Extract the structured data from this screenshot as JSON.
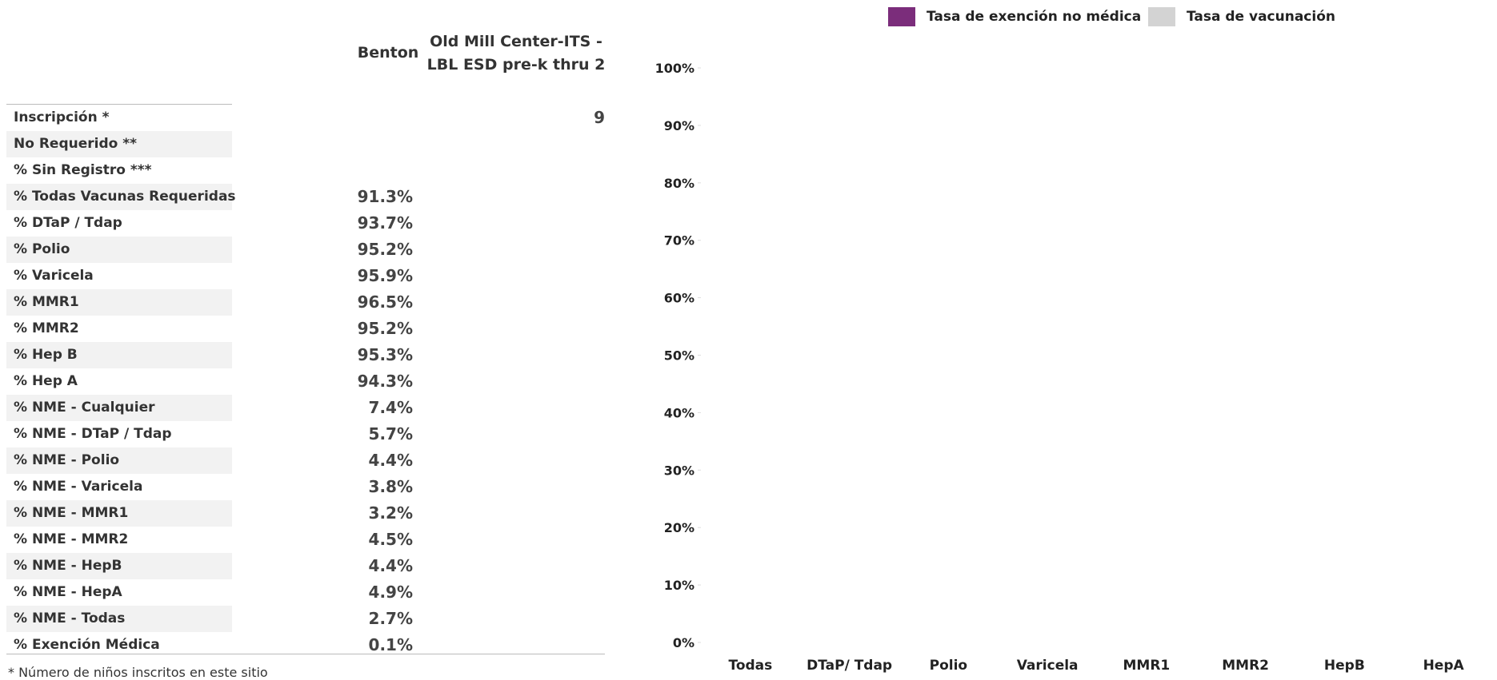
{
  "table": {
    "headers": {
      "county": "Benton",
      "school": "Old Mill Center-ITS - LBL ESD  pre-k thru 2",
      "school_line1": "Old Mill Center-ITS -",
      "school_line2": "LBL ESD  pre-k thru 2"
    },
    "rows": [
      {
        "label": "Inscripción *",
        "county": "",
        "school": "9"
      },
      {
        "label": "No Requerido **",
        "county": "",
        "school": ""
      },
      {
        "label": "% Sin Registro ***",
        "county": "",
        "school": ""
      },
      {
        "label": "% Todas Vacunas Requeridas",
        "county": "91.3%",
        "school": ""
      },
      {
        "label": "% DTaP / Tdap",
        "county": "93.7%",
        "school": ""
      },
      {
        "label": "% Polio",
        "county": "95.2%",
        "school": ""
      },
      {
        "label": "% Varicela",
        "county": "95.9%",
        "school": ""
      },
      {
        "label": "% MMR1",
        "county": "96.5%",
        "school": ""
      },
      {
        "label": "% MMR2",
        "county": "95.2%",
        "school": ""
      },
      {
        "label": "% Hep B",
        "county": "95.3%",
        "school": ""
      },
      {
        "label": "% Hep A",
        "county": "94.3%",
        "school": ""
      },
      {
        "label": "% NME - Cualquier",
        "county": "7.4%",
        "school": ""
      },
      {
        "label": "% NME - DTaP / Tdap",
        "county": "5.7%",
        "school": ""
      },
      {
        "label": "% NME - Polio",
        "county": "4.4%",
        "school": ""
      },
      {
        "label": "% NME - Varicela",
        "county": "3.8%",
        "school": ""
      },
      {
        "label": "% NME - MMR1",
        "county": "3.2%",
        "school": ""
      },
      {
        "label": "% NME - MMR2",
        "county": "4.5%",
        "school": ""
      },
      {
        "label": "% NME - HepB",
        "county": "4.4%",
        "school": ""
      },
      {
        "label": "% NME - HepA",
        "county": "4.9%",
        "school": ""
      },
      {
        "label": "% NME - Todas",
        "county": "2.7%",
        "school": ""
      },
      {
        "label": "% Exención Médica",
        "county": "0.1%",
        "school": ""
      }
    ],
    "footnote": "* Número de niños inscritos en este sitio"
  },
  "chart_data": {
    "type": "bar",
    "categories": [
      "Todas",
      "DTaP/ Tdap",
      "Polio",
      "Varicela",
      "MMR1",
      "MMR2",
      "HepB",
      "HepA"
    ],
    "series": [
      {
        "name": "Tasa de exención no médica",
        "color": "#7b2d7b",
        "values": [
          null,
          null,
          null,
          null,
          null,
          null,
          null,
          null
        ]
      },
      {
        "name": "Tasa de vacunación",
        "color": "#d3d3d3",
        "values": [
          null,
          null,
          null,
          null,
          null,
          null,
          null,
          null
        ]
      }
    ],
    "yticks": [
      "0%",
      "10%",
      "20%",
      "30%",
      "40%",
      "50%",
      "60%",
      "70%",
      "80%",
      "90%",
      "100%"
    ],
    "ylim": [
      0,
      100
    ],
    "grid": false,
    "legend_position": "top"
  }
}
